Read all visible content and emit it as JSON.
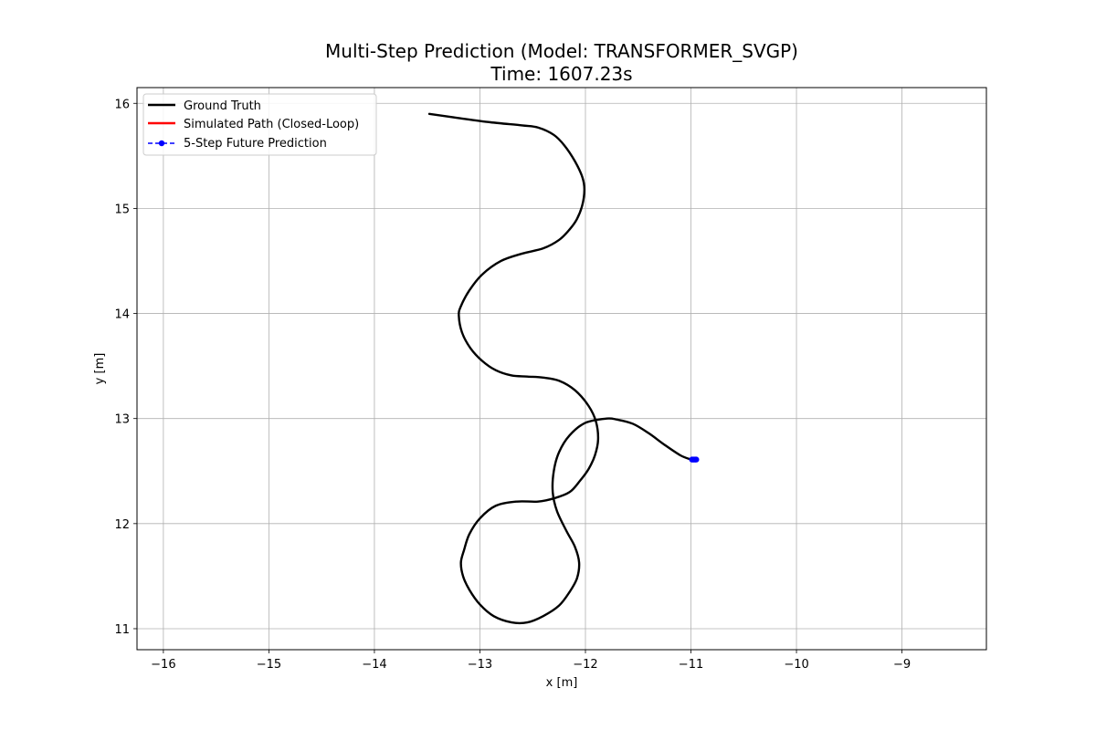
{
  "chart_data": {
    "type": "line",
    "title": "Multi-Step Prediction (Model: TRANSFORMER_SVGP)",
    "subtitle": "Time: 1607.23s",
    "xlabel": "x [m]",
    "ylabel": "y [m]",
    "xlim": [
      -16.25,
      -8.2
    ],
    "ylim": [
      10.8,
      16.15
    ],
    "xticks": [
      -16,
      -15,
      -14,
      -13,
      -12,
      -11,
      -10,
      -9
    ],
    "yticks": [
      11,
      12,
      13,
      14,
      15,
      16
    ],
    "grid": true,
    "legend_position": "upper-left",
    "series": [
      {
        "name": "Ground Truth",
        "color": "#000000",
        "style": "solid",
        "x": [
          -13.48,
          -13.2,
          -12.9,
          -12.6,
          -12.45,
          -12.3,
          -12.2,
          -12.1,
          -12.03,
          -12.01,
          -12.03,
          -12.08,
          -12.15,
          -12.25,
          -12.4,
          -12.6,
          -12.8,
          -12.98,
          -13.1,
          -13.18,
          -13.2,
          -13.17,
          -13.09,
          -12.98,
          -12.85,
          -12.7,
          -12.55,
          -12.4,
          -12.25,
          -12.1,
          -11.97,
          -11.9,
          -11.88,
          -11.91,
          -11.97,
          -12.05,
          -12.15,
          -12.3,
          -12.45,
          -12.65,
          -12.85,
          -13.0,
          -13.1,
          -13.15,
          -13.18,
          -13.16,
          -13.1,
          -13.0,
          -12.87,
          -12.7,
          -12.55,
          -12.4,
          -12.25,
          -12.15,
          -12.08,
          -12.06,
          -12.1,
          -12.18,
          -12.27,
          -12.31,
          -12.3,
          -12.25,
          -12.15,
          -12.0,
          -11.8,
          -11.7,
          -11.55,
          -11.4,
          -11.25,
          -11.1,
          -11.0
        ],
        "y": [
          15.9,
          15.86,
          15.82,
          15.79,
          15.77,
          15.7,
          15.6,
          15.45,
          15.3,
          15.18,
          15.03,
          14.9,
          14.8,
          14.7,
          14.62,
          14.57,
          14.5,
          14.37,
          14.22,
          14.07,
          13.98,
          13.82,
          13.67,
          13.55,
          13.46,
          13.41,
          13.4,
          13.39,
          13.36,
          13.27,
          13.12,
          12.97,
          12.8,
          12.65,
          12.52,
          12.41,
          12.3,
          12.24,
          12.21,
          12.21,
          12.17,
          12.05,
          11.9,
          11.75,
          11.63,
          11.5,
          11.37,
          11.23,
          11.12,
          11.06,
          11.06,
          11.12,
          11.22,
          11.35,
          11.48,
          11.63,
          11.78,
          11.93,
          12.12,
          12.3,
          12.5,
          12.68,
          12.84,
          12.96,
          13.0,
          12.99,
          12.95,
          12.86,
          12.75,
          12.65,
          12.61
        ]
      },
      {
        "name": "Simulated Path (Closed-Loop)",
        "color": "#ff0000",
        "style": "solid",
        "x": [],
        "y": []
      },
      {
        "name": "5-Step Future Prediction",
        "color": "#0000ff",
        "style": "dashed-markers",
        "x": [
          -10.99,
          -10.98,
          -10.97,
          -10.96,
          -10.95
        ],
        "y": [
          12.61,
          12.61,
          12.61,
          12.61,
          12.61
        ]
      }
    ]
  }
}
